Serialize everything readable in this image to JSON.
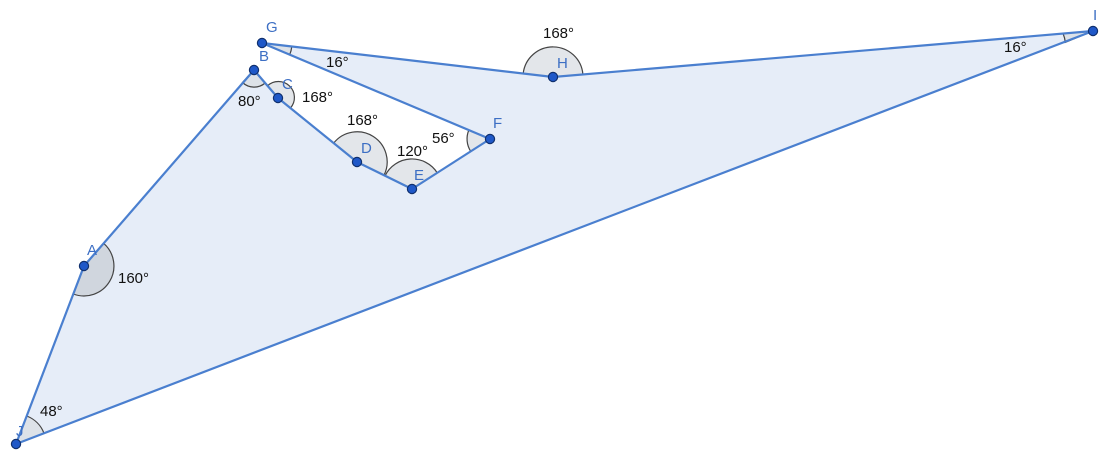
{
  "points": {
    "A": {
      "label": "A"
    },
    "B": {
      "label": "B"
    },
    "C": {
      "label": "C"
    },
    "D": {
      "label": "D"
    },
    "E": {
      "label": "E"
    },
    "F": {
      "label": "F"
    },
    "G": {
      "label": "G"
    },
    "H": {
      "label": "H"
    },
    "I": {
      "label": "I"
    },
    "J": {
      "label": "J"
    }
  },
  "polygon_order": [
    "J",
    "A",
    "B",
    "C",
    "D",
    "E",
    "F",
    "G",
    "H",
    "I"
  ],
  "angles": {
    "A": "160°",
    "B": "80°",
    "C": "168°",
    "D": "168°",
    "E": "120°",
    "F": "56°",
    "G": "16°",
    "H": "168°",
    "I": "16°",
    "J": "48°"
  },
  "colors": {
    "fill": "#e6edf8",
    "edge": "#4a7fcf",
    "point": "#1f58c8",
    "label": "#3d6fc4"
  }
}
